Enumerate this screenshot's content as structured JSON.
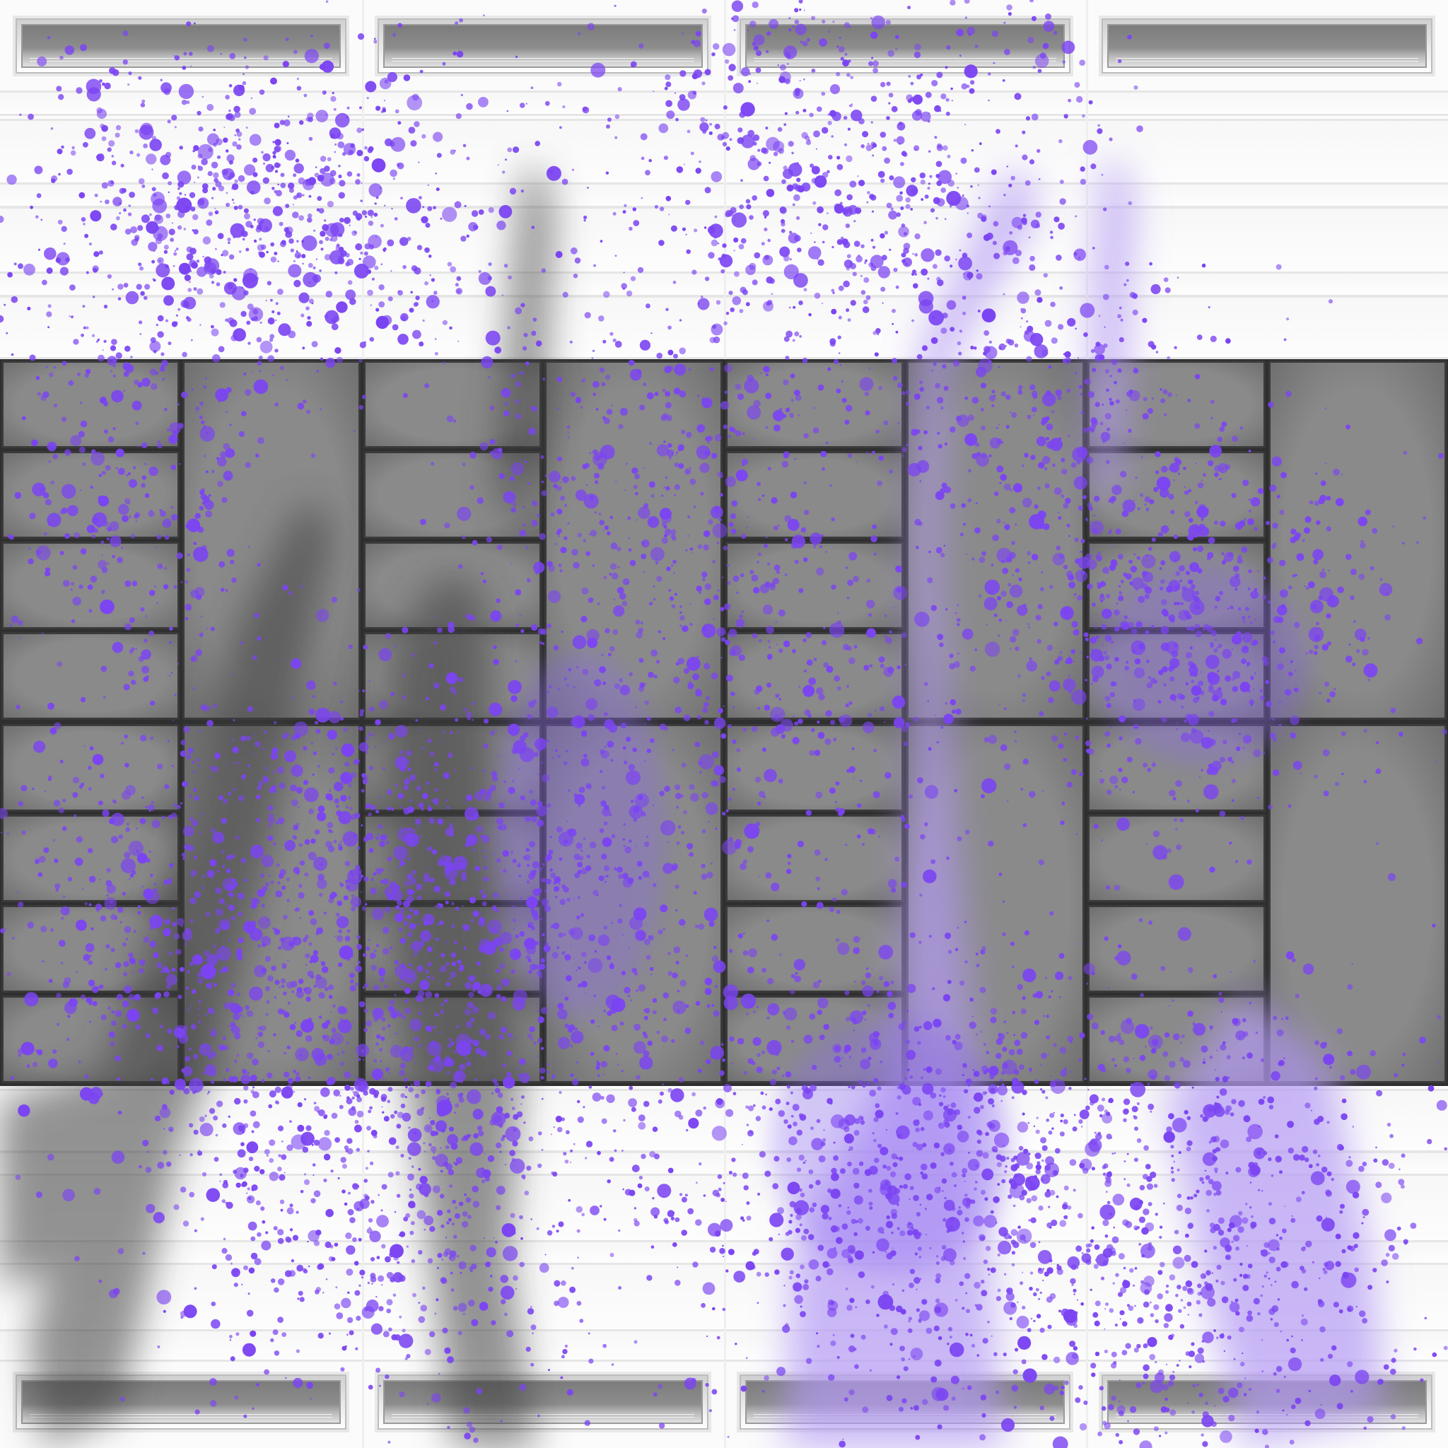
{
  "scene": {
    "description_colors": {
      "background": "#fbfbfb",
      "tile_fill": "#8a8a8a",
      "grout": "#2f2f2f",
      "stain_gray": "#3e3e3e",
      "paint_purple": "#7a45f0",
      "paint_lavender": "#b59cf5"
    },
    "plaques_top_count": 4,
    "plaques_bottom_count": 4,
    "grid_columns": 8,
    "grid_blocks": 2
  }
}
